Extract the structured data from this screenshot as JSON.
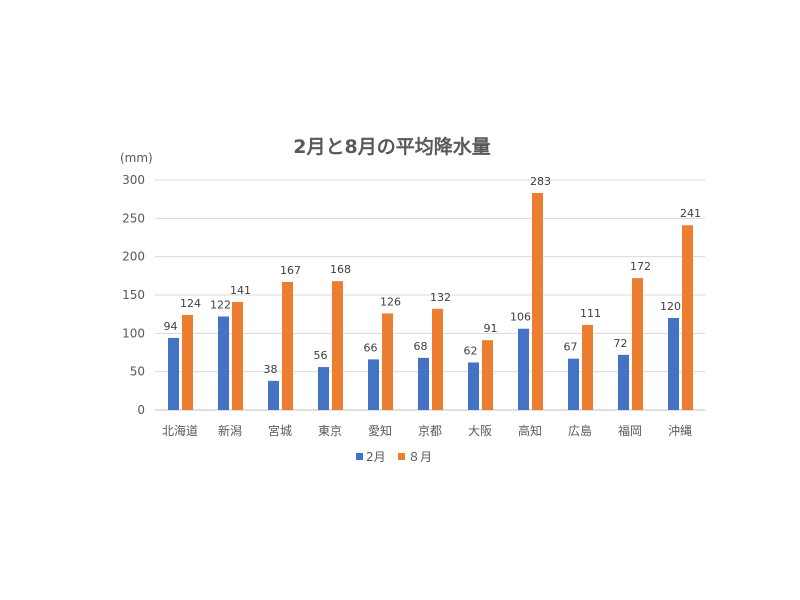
{
  "chart_data": {
    "type": "bar",
    "title": "2月と8月の平均降水量",
    "ylabel": "(mm)",
    "xlabel": "",
    "ylim": [
      0,
      300
    ],
    "yticks": [
      0,
      50,
      100,
      150,
      200,
      250,
      300
    ],
    "grid": true,
    "legend_position": "bottom",
    "categories": [
      "北海道",
      "新潟",
      "宮城",
      "東京",
      "愛知",
      "京都",
      "大阪",
      "高知",
      "広島",
      "福岡",
      "沖縄"
    ],
    "series": [
      {
        "name": "2月",
        "color": "#4472C4",
        "values": [
          94,
          122,
          38,
          56,
          66,
          68,
          62,
          106,
          67,
          72,
          120
        ]
      },
      {
        "name": "８月",
        "color": "#ED7D31",
        "values": [
          124,
          141,
          167,
          168,
          126,
          132,
          91,
          283,
          111,
          172,
          241
        ]
      }
    ]
  }
}
